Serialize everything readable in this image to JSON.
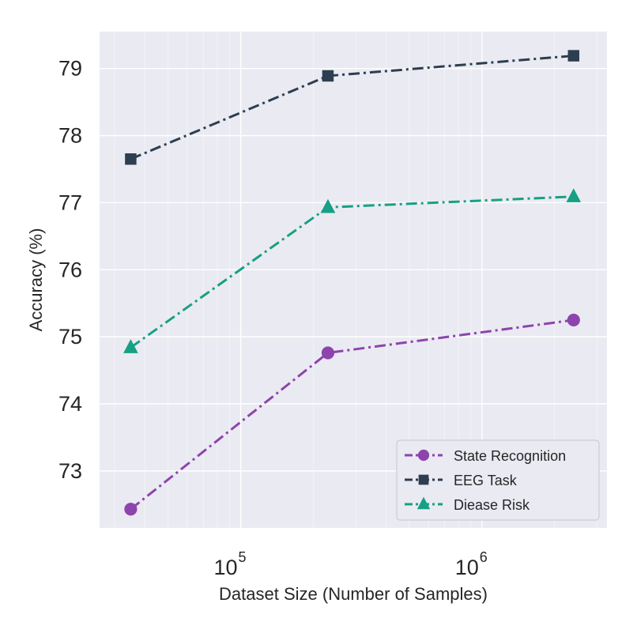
{
  "chart_data": {
    "type": "line",
    "title": "",
    "xlabel": "Dataset Size (Number of Samples)",
    "ylabel": "Accuracy (%)",
    "x_scale": "log",
    "x": [
      35000,
      230000,
      2400000
    ],
    "xlim": [
      26000,
      3300000
    ],
    "ylim": [
      72.15,
      79.55
    ],
    "x_ticks": [
      {
        "value": 100000,
        "base": "10",
        "exp": "5"
      },
      {
        "value": 1000000,
        "base": "10",
        "exp": "6"
      }
    ],
    "y_ticks": [
      73,
      74,
      75,
      76,
      77,
      78,
      79
    ],
    "grid": true,
    "legend_position": "lower-right",
    "series": [
      {
        "name": "State Recognition",
        "values": [
          72.43,
          74.76,
          75.25
        ],
        "color": "#8e44ad",
        "marker": "circle"
      },
      {
        "name": "EEG Task",
        "values": [
          77.65,
          78.89,
          79.19
        ],
        "color": "#2c3e50",
        "marker": "square"
      },
      {
        "name": "Diease Risk",
        "values": [
          74.84,
          76.93,
          77.09
        ],
        "color": "#16a085",
        "marker": "triangle"
      }
    ]
  }
}
